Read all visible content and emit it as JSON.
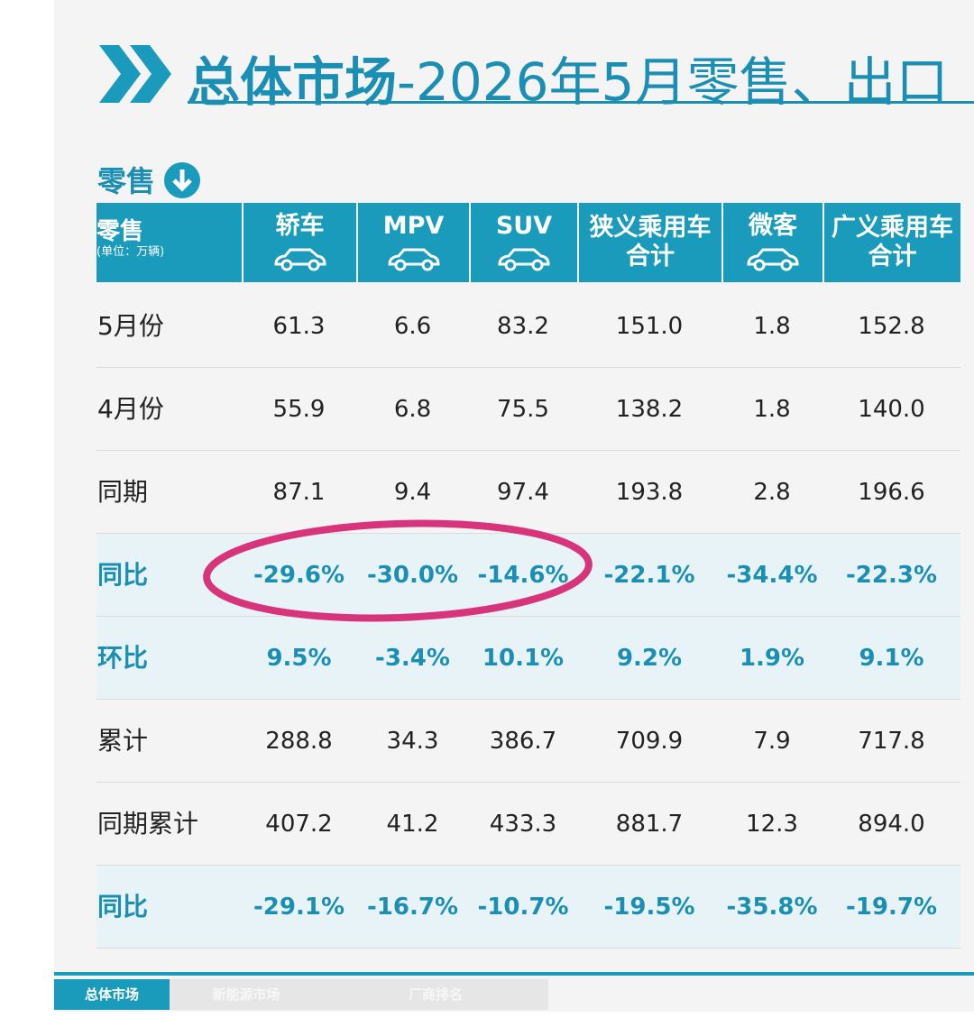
{
  "header": {
    "title_bold": "总体市场",
    "title_rest": "-2026年5月零售、出口"
  },
  "section": "零售",
  "table": {
    "corner": "零售",
    "unit": "(单位：万辆)",
    "columns": [
      [
        "轿车"
      ],
      [
        "MPV"
      ],
      [
        "SUV"
      ],
      [
        "狭义乘用车",
        "合计"
      ],
      [
        "微客"
      ],
      [
        "广义乘用车",
        "合计"
      ]
    ],
    "rows": [
      {
        "label": "5月份",
        "values": [
          "61.3",
          "6.6",
          "83.2",
          "151.0",
          "1.8",
          "152.8"
        ]
      },
      {
        "label": "4月份",
        "values": [
          "55.9",
          "6.8",
          "75.5",
          "138.2",
          "1.8",
          "140.0"
        ]
      },
      {
        "label": "同期",
        "values": [
          "87.1",
          "9.4",
          "97.4",
          "193.8",
          "2.8",
          "196.6"
        ]
      },
      {
        "label": "同比",
        "values": [
          "-29.6%",
          "-30.0%",
          "-14.6%",
          "-22.1%",
          "-34.4%",
          "-22.3%"
        ],
        "highlight": true
      },
      {
        "label": "环比",
        "values": [
          "9.5%",
          "-3.4%",
          "10.1%",
          "9.2%",
          "1.9%",
          "9.1%"
        ],
        "highlight": true
      },
      {
        "label": "累计",
        "values": [
          "288.8",
          "34.3",
          "386.7",
          "709.9",
          "7.9",
          "717.8"
        ]
      },
      {
        "label": "同期累计",
        "values": [
          "407.2",
          "41.2",
          "433.3",
          "881.7",
          "12.3",
          "894.0"
        ]
      },
      {
        "label": "同比",
        "values": [
          "-29.1%",
          "-16.7%",
          "-10.7%",
          "-19.5%",
          "-35.8%",
          "-19.7%"
        ],
        "highlight": true
      }
    ]
  },
  "tabs": [
    "总体市场",
    "新能源市场",
    "厂商排名"
  ]
}
